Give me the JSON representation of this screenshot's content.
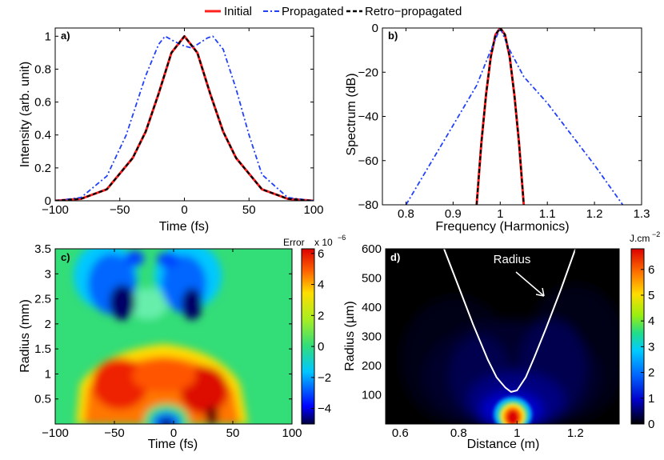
{
  "legend": {
    "items": [
      {
        "label": "Initial",
        "color": "#ff2020",
        "style": "solid"
      },
      {
        "label": "Propagated",
        "color": "#2040ff",
        "style": "dashdot"
      },
      {
        "label": "Retro−propagated",
        "color": "#000000",
        "style": "dashed"
      }
    ]
  },
  "chart_data": [
    {
      "panel": "a)",
      "type": "line",
      "xlabel": "Time (fs)",
      "ylabel": "Intensity (arb. unit)",
      "xlim": [
        -100,
        100
      ],
      "ylim": [
        0,
        1.05
      ],
      "xticks": [
        -100,
        -50,
        0,
        50,
        100
      ],
      "yticks": [
        0,
        0.2,
        0.4,
        0.6,
        0.8,
        1
      ],
      "series": [
        {
          "name": "Initial",
          "x": [
            -100,
            -80,
            -60,
            -40,
            -30,
            -20,
            -10,
            0,
            10,
            20,
            30,
            40,
            60,
            80,
            100
          ],
          "y": [
            0.0,
            0.012,
            0.07,
            0.26,
            0.42,
            0.65,
            0.9,
            1.0,
            0.9,
            0.65,
            0.42,
            0.26,
            0.07,
            0.012,
            0.0
          ]
        },
        {
          "name": "Propagated",
          "x": [
            -100,
            -80,
            -60,
            -45,
            -30,
            -20,
            -15,
            -8,
            0,
            5,
            10,
            18,
            22,
            30,
            40,
            50,
            60,
            80,
            100
          ],
          "y": [
            0.0,
            0.02,
            0.15,
            0.4,
            0.76,
            0.95,
            1.0,
            0.97,
            0.94,
            0.93,
            0.95,
            0.99,
            1.0,
            0.92,
            0.68,
            0.4,
            0.16,
            0.02,
            0.0
          ]
        },
        {
          "name": "Retro-propagated",
          "x": [
            -100,
            -80,
            -60,
            -40,
            -30,
            -20,
            -10,
            0,
            10,
            20,
            30,
            40,
            60,
            80,
            100
          ],
          "y": [
            0.0,
            0.012,
            0.07,
            0.26,
            0.42,
            0.65,
            0.9,
            1.0,
            0.9,
            0.65,
            0.42,
            0.26,
            0.07,
            0.012,
            0.0
          ]
        }
      ]
    },
    {
      "panel": "b)",
      "type": "line",
      "xlabel": "Frequency (Harmonics)",
      "ylabel": "Spectrum (dB)",
      "xlim": [
        0.75,
        1.3
      ],
      "ylim": [
        -80,
        0
      ],
      "xticks": [
        0.8,
        0.9,
        1,
        1.1,
        1.2,
        1.3
      ],
      "yticks": [
        -80,
        -60,
        -40,
        -20,
        0
      ],
      "series": [
        {
          "name": "Initial",
          "x": [
            0.95,
            0.96,
            0.97,
            0.98,
            0.99,
            1.0,
            1.01,
            1.02,
            1.03,
            1.04,
            1.05
          ],
          "y": [
            -80,
            -52,
            -30,
            -13,
            -3,
            0,
            -3,
            -13,
            -30,
            -52,
            -80
          ]
        },
        {
          "name": "Propagated",
          "x": [
            0.8,
            0.85,
            0.9,
            0.95,
            0.98,
            1.0,
            1.02,
            1.05,
            1.1,
            1.15,
            1.2,
            1.26
          ],
          "y": [
            -80,
            -62,
            -44,
            -26,
            -10,
            0,
            -10,
            -22,
            -34,
            -48,
            -62,
            -80
          ]
        },
        {
          "name": "Retro-propagated",
          "x": [
            0.95,
            0.96,
            0.97,
            0.98,
            0.99,
            1.0,
            1.01,
            1.02,
            1.03,
            1.04,
            1.05
          ],
          "y": [
            -80,
            -52,
            -30,
            -13,
            -3,
            0,
            -3,
            -13,
            -30,
            -52,
            -80
          ]
        }
      ]
    },
    {
      "panel": "c)",
      "type": "heatmap",
      "xlabel": "Time (fs)",
      "ylabel": "Radius (mm)",
      "xlim": [
        -100,
        100
      ],
      "ylim": [
        0,
        3.5
      ],
      "xticks": [
        -100,
        -50,
        0,
        50,
        100
      ],
      "yticks": [
        0.5,
        1,
        1.5,
        2,
        2.5,
        3,
        3.5
      ],
      "colorbar": {
        "title": "Error",
        "scale_label": "x 10",
        "scale_exp": "−6",
        "ticks": [
          -4,
          -2,
          0,
          2,
          4,
          6
        ],
        "range": [
          -5,
          6.3
        ]
      }
    },
    {
      "panel": "d)",
      "type": "heatmap",
      "xlabel": "Distance (m)",
      "ylabel": "Radius (µm)",
      "xlim": [
        0.55,
        1.35
      ],
      "ylim": [
        0,
        600
      ],
      "xticks": [
        0.6,
        0.8,
        1,
        1.2
      ],
      "yticks": [
        100,
        200,
        300,
        400,
        500,
        600
      ],
      "annotation": "Radius",
      "radius_curve": {
        "x": [
          0.75,
          0.8,
          0.85,
          0.9,
          0.93,
          0.96,
          0.98,
          1.0,
          1.03,
          1.06,
          1.1,
          1.15,
          1.2
        ],
        "y": [
          600,
          470,
          340,
          220,
          160,
          125,
          110,
          115,
          160,
          230,
          330,
          460,
          600
        ]
      },
      "colorbar": {
        "title": "J.cm",
        "title_exp": "−2",
        "ticks": [
          0,
          1,
          2,
          3,
          4,
          5,
          6
        ],
        "range": [
          0,
          6.8
        ]
      }
    }
  ]
}
